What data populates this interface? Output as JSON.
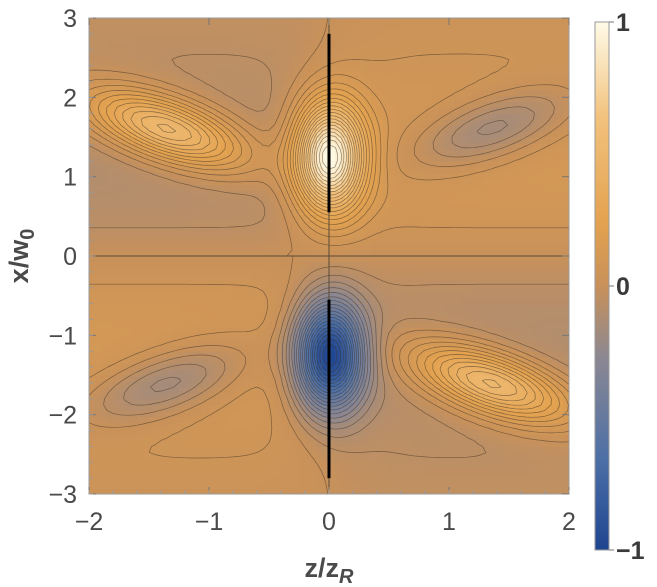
{
  "chart_data": {
    "type": "heatmap",
    "title": "",
    "xlabel": {
      "main": "z/z",
      "sub": "R"
    },
    "ylabel": {
      "main": "x/w",
      "sub": "0"
    },
    "xlim": [
      -2,
      2
    ],
    "ylim": [
      -3,
      3
    ],
    "x_ticks": [
      -2,
      -1,
      0,
      1,
      2
    ],
    "x_tick_labels": [
      "−2",
      "−1",
      "0",
      "1",
      "2"
    ],
    "y_ticks": [
      -3,
      -2,
      -1,
      0,
      1,
      2,
      3
    ],
    "y_tick_labels": [
      "−3",
      "−2",
      "−1",
      "0",
      "1",
      "2",
      "3"
    ],
    "colorbar": {
      "range": [
        -1,
        1
      ],
      "ticks": [
        1,
        0,
        -1
      ],
      "tick_labels": [
        "1",
        "0",
        "−1"
      ],
      "colors": [
        "#1f4590",
        "#4c6fa6",
        "#8a8793",
        "#c8915a",
        "#e3a24f",
        "#f2c27e",
        "#fffbe8"
      ]
    },
    "features": [
      {
        "name": "maximum",
        "z": 0.0,
        "x": 1.25,
        "value": 1.0
      },
      {
        "name": "minimum",
        "z": 0.0,
        "x": -1.25,
        "value": -1.0
      },
      {
        "name": "lobe",
        "z": -1.35,
        "x": 1.6,
        "value": 0.6
      },
      {
        "name": "lobe",
        "z": 1.35,
        "x": 1.6,
        "value": -0.25
      },
      {
        "name": "lobe",
        "z": -1.35,
        "x": -1.6,
        "value": -0.25
      },
      {
        "name": "lobe",
        "z": 1.35,
        "x": -1.6,
        "value": 0.6
      }
    ],
    "grid": false,
    "legend": "colorbar-right"
  }
}
